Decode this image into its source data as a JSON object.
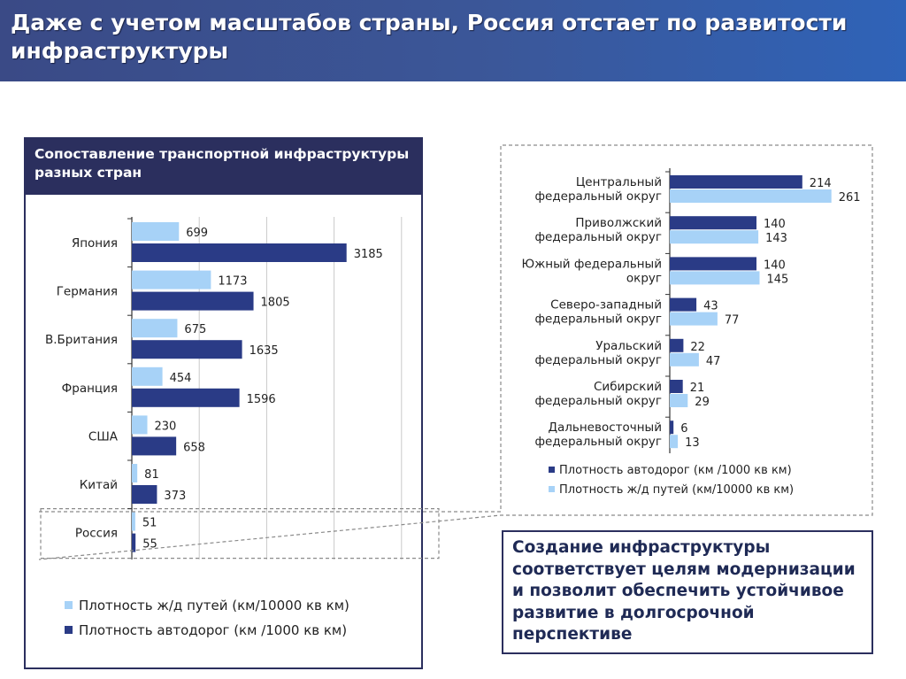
{
  "header": {
    "title": "Даже с учетом масштабов страны, Россия отстает по развитости инфраструктуры"
  },
  "left_panel": {
    "title": "Сопоставление транспортной инфраструктуры разных стран"
  },
  "callout": {
    "text": "Создание инфраструктуры соответствует целям модернизации и позволит обеспечить устойчивое развитие в долгосрочной перспективе"
  },
  "colors": {
    "light_series": "#a7d2f7",
    "dark_series": "#2a3b86",
    "header_bg": "#2b2f5e",
    "banner_bg": "#3b5799"
  },
  "chart_data": [
    {
      "type": "bar",
      "orientation": "horizontal",
      "title": "Сопоставление транспортной инфраструктуры разных стран",
      "categories": [
        "Япония",
        "Германия",
        "В.Британия",
        "Франция",
        "США",
        "Китай",
        "Россия"
      ],
      "series": [
        {
          "name": "Плотность ж/д путей (км/10000 кв км)",
          "color": "#a7d2f7",
          "values": [
            699,
            1173,
            675,
            454,
            230,
            81,
            51
          ]
        },
        {
          "name": "Плотность автодорог (км /1000 кв км)",
          "color": "#2a3b86",
          "values": [
            3185,
            1805,
            1635,
            1596,
            658,
            373,
            55
          ]
        }
      ],
      "xlim": [
        0,
        4000
      ],
      "grid": true,
      "legend": "bottom",
      "legend_order": [
        0,
        1
      ],
      "highlight_category": "Россия"
    },
    {
      "type": "bar",
      "orientation": "horizontal",
      "categories": [
        [
          "Центральный",
          "федеральный округ"
        ],
        [
          "Приволжский",
          "федеральный округ"
        ],
        [
          "Южный федеральный",
          "округ"
        ],
        [
          "Северо-западный",
          "федеральный округ"
        ],
        [
          "Уральский",
          "федеральный округ"
        ],
        [
          "Сибирский",
          "федеральный округ"
        ],
        [
          "Дальневосточный",
          "федеральный округ"
        ]
      ],
      "series": [
        {
          "name": "Плотность автодорог (км /1000 кв км)",
          "color": "#2a3b86",
          "values": [
            214,
            140,
            140,
            43,
            22,
            21,
            6
          ]
        },
        {
          "name": "Плотность ж/д путей (км/10000 кв км)",
          "color": "#a7d2f7",
          "values": [
            261,
            143,
            145,
            77,
            47,
            29,
            13
          ]
        }
      ],
      "xlim": [
        0,
        300
      ],
      "grid": false,
      "legend": "bottom",
      "legend_order": [
        0,
        1
      ]
    }
  ]
}
